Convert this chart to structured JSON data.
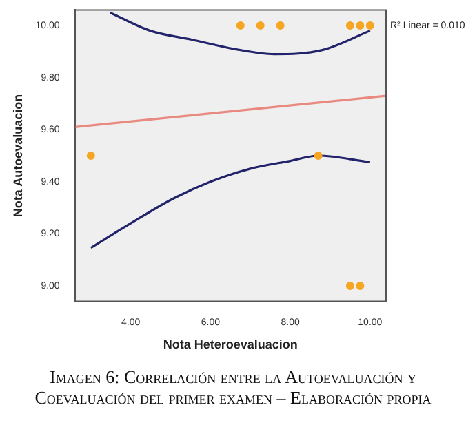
{
  "chart_data": {
    "type": "scatter",
    "title": "Imagen 6: Correlación entre la Autoevaluación y Coevaluación del primer examen – Elaboración propia",
    "xlabel": "Nota Heteroevaluacion",
    "ylabel": "Nota Autoevaluacion",
    "annotations": [
      "R² Linear = 0.010"
    ],
    "xlim": [
      2.6,
      10.4
    ],
    "xticks": [
      {
        "value": 4,
        "label": "4.00"
      },
      {
        "value": 6,
        "label": "6.00"
      },
      {
        "value": 8,
        "label": "8.00"
      },
      {
        "value": 10,
        "label": "10.00"
      }
    ],
    "ylim": [
      8.94,
      10.06
    ],
    "yticks": [
      {
        "value": 9,
        "label": "9.00"
      },
      {
        "value": 9.2,
        "label": "9.20"
      },
      {
        "value": 9.4,
        "label": "9.40"
      },
      {
        "value": 9.6,
        "label": "9.60"
      },
      {
        "value": 9.8,
        "label": "9.80"
      },
      {
        "value": 10,
        "label": "10.00"
      }
    ],
    "grid": false,
    "legend": false,
    "series": [
      {
        "marker": "circle",
        "color": "#f5a623",
        "x": [
          3,
          6.75,
          7.25,
          7.75,
          8.7,
          9.5,
          9.75,
          10,
          9.5,
          9.75
        ],
        "values": [
          9.5,
          10,
          10,
          10,
          9.5,
          10,
          10,
          10,
          9,
          9
        ]
      },
      {
        "type": "line",
        "marker": "none",
        "color": "#e88a80",
        "x": [
          2.6,
          10.4
        ],
        "values": [
          9.61,
          9.73
        ]
      },
      {
        "type": "line",
        "marker": "none",
        "color": "#23236b",
        "x": [
          3.48,
          4.49,
          5.53,
          6.6,
          7.6,
          8.8,
          10
        ],
        "values": [
          10.05,
          9.98,
          9.946,
          9.91,
          9.89,
          9.906,
          9.98
        ]
      },
      {
        "type": "line",
        "marker": "none",
        "color": "#23236b",
        "x": [
          3,
          4,
          5,
          6,
          7,
          8,
          8.7,
          10
        ],
        "values": [
          9.146,
          9.24,
          9.33,
          9.4,
          9.45,
          9.48,
          9.5,
          9.475
        ]
      }
    ]
  }
}
